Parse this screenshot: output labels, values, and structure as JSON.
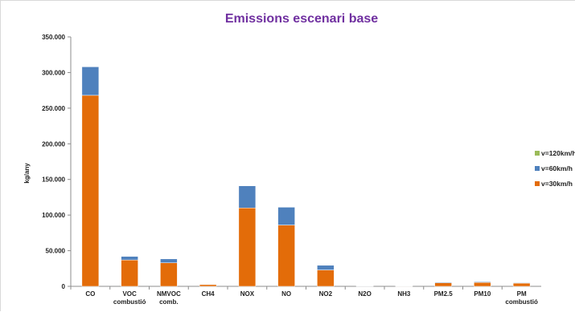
{
  "chart_data": {
    "type": "bar",
    "stacked": true,
    "title": "Emissions escenari base",
    "xlabel": "",
    "ylabel": "kg/any",
    "ylim": [
      0,
      350000
    ],
    "yticks": [
      "0",
      "50.000",
      "100.000",
      "150.000",
      "200.000",
      "250.000",
      "300.000",
      "350.000"
    ],
    "grid": false,
    "legend_position": "right",
    "categories": [
      [
        "CO"
      ],
      [
        "VOC",
        "combustió"
      ],
      [
        "NMVOC",
        "comb."
      ],
      [
        "CH4"
      ],
      [
        "NOX"
      ],
      [
        "NO"
      ],
      [
        "NO2"
      ],
      [
        "N2O"
      ],
      [
        "NH3"
      ],
      [
        "PM2.5"
      ],
      [
        "PM10"
      ],
      [
        "PM",
        "combustió"
      ]
    ],
    "series": [
      {
        "name": "v=30km/h",
        "color": "#e36c09",
        "values": [
          268000,
          37000,
          33000,
          2500,
          110000,
          86000,
          23000,
          600,
          500,
          5000,
          5500,
          4500
        ]
      },
      {
        "name": "v=60km/h",
        "color": "#4f81bd",
        "values": [
          40000,
          5000,
          5500,
          500,
          31000,
          25000,
          6500,
          100,
          100,
          900,
          1000,
          700
        ]
      },
      {
        "name": "v=120km/h",
        "color": "#9bbb59",
        "values": [
          0,
          0,
          0,
          0,
          0,
          0,
          0,
          0,
          0,
          0,
          0,
          0
        ]
      }
    ]
  }
}
